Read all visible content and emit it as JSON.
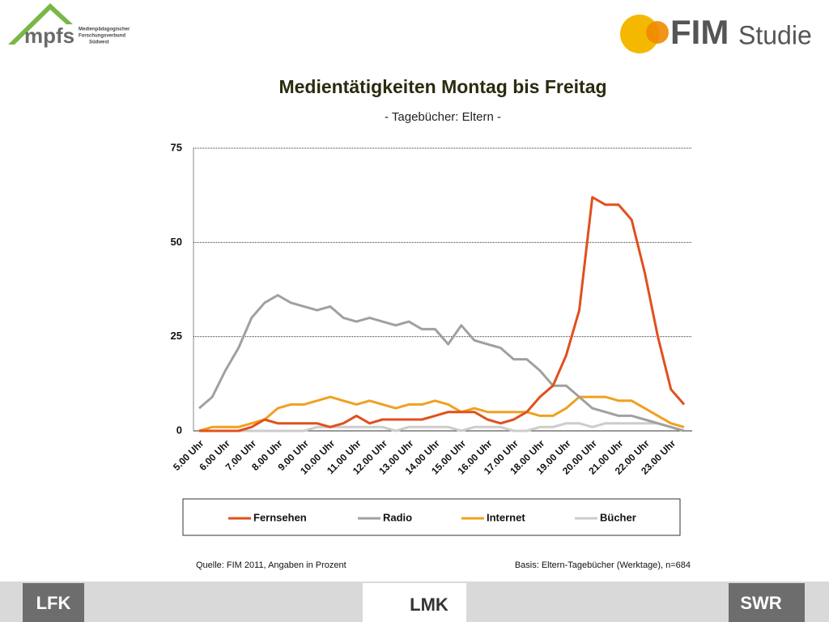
{
  "header": {
    "left_logo": "mpfs",
    "left_logo_sub": [
      "Medienpädagogischer",
      "Forschungsverbund",
      "Südwest"
    ],
    "right_logo": "FIM",
    "right_logo_sub": "Studie"
  },
  "chart_data": {
    "type": "line",
    "title": "Medientätigkeiten Montag bis Freitag",
    "subtitle": "- Tagebücher: Eltern -",
    "categories": [
      "5.00 Uhr",
      null,
      "6.00 Uhr",
      null,
      "7.00 Uhr",
      null,
      "8.00 Uhr",
      null,
      "9.00 Uhr",
      null,
      "10.00 Uhr",
      null,
      "11.00 Uhr",
      null,
      "12.00 Uhr",
      null,
      "13.00 Uhr",
      null,
      "14.00 Uhr",
      null,
      "15.00 Uhr",
      null,
      "16.00 Uhr",
      null,
      "17.00 Uhr",
      null,
      "18.00 Uhr",
      null,
      "19.00 Uhr",
      null,
      "20.00 Uhr",
      null,
      "21.00 Uhr",
      null,
      "22.00 Uhr",
      null,
      "23.00 Uhr",
      null
    ],
    "series": [
      {
        "name": "Fernsehen",
        "color": "#e0501e",
        "values": [
          0,
          0,
          0,
          0,
          1,
          3,
          2,
          2,
          2,
          2,
          1,
          2,
          4,
          2,
          3,
          3,
          3,
          3,
          4,
          5,
          5,
          5,
          3,
          2,
          3,
          5,
          9,
          12,
          20,
          32,
          62,
          60,
          60,
          56,
          42,
          25,
          11,
          7
        ]
      },
      {
        "name": "Radio",
        "color": "#a0a0a0",
        "values": [
          6,
          9,
          16,
          22,
          30,
          34,
          36,
          34,
          33,
          32,
          33,
          30,
          29,
          30,
          29,
          28,
          29,
          27,
          27,
          23,
          28,
          24,
          23,
          22,
          19,
          19,
          16,
          12,
          12,
          9,
          6,
          5,
          4,
          4,
          3,
          2,
          1,
          0
        ]
      },
      {
        "name": "Internet",
        "color": "#f0a020",
        "values": [
          0,
          1,
          1,
          1,
          2,
          3,
          6,
          7,
          7,
          8,
          9,
          8,
          7,
          8,
          7,
          6,
          7,
          7,
          8,
          7,
          5,
          6,
          5,
          5,
          5,
          5,
          4,
          4,
          6,
          9,
          9,
          9,
          8,
          8,
          6,
          4,
          2,
          1
        ]
      },
      {
        "name": "Bücher",
        "color": "#cccccc",
        "values": [
          0,
          0,
          0,
          0,
          0,
          0,
          0,
          0,
          0,
          1,
          1,
          1,
          1,
          1,
          1,
          0,
          1,
          1,
          1,
          1,
          0,
          1,
          1,
          1,
          0,
          0,
          1,
          1,
          2,
          2,
          1,
          2,
          2,
          2,
          2,
          2,
          1,
          0
        ]
      }
    ],
    "ylim": [
      0,
      75
    ],
    "yticks": [
      0,
      25,
      50,
      75
    ],
    "grid": true,
    "legend": "bottom",
    "source": "Quelle: FIM 2011, Angaben in Prozent",
    "basis": "Basis: Eltern-Tagebücher (Werktage), n=684"
  },
  "footer": {
    "left": "LFK",
    "center": "LMK",
    "right": "SWR"
  }
}
